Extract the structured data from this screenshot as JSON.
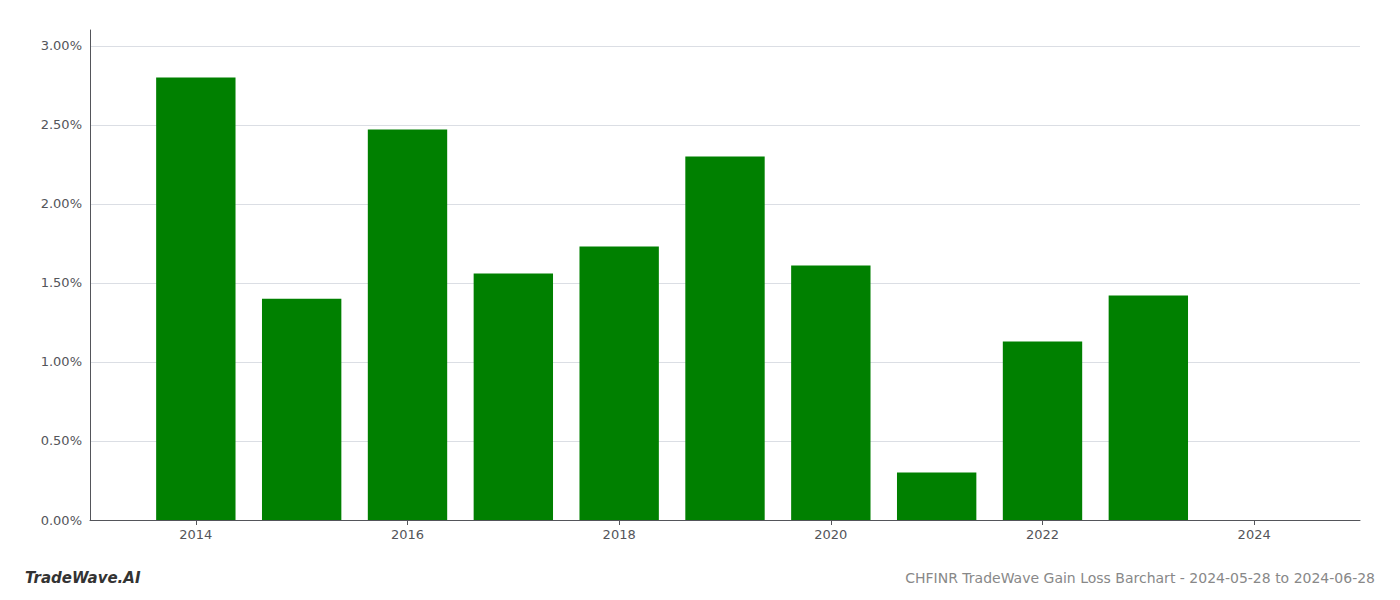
{
  "chart_data": {
    "type": "bar",
    "title": "CHFINR TradeWave Gain Loss Barchart - 2024-05-28 to 2024-06-28",
    "annotations": [
      "TradeWave.AI"
    ],
    "x": [
      2014,
      2015,
      2016,
      2017,
      2018,
      2019,
      2020,
      2021,
      2022,
      2023,
      2024
    ],
    "values": [
      0.028,
      0.014,
      0.0247,
      0.0156,
      0.0173,
      0.023,
      0.0161,
      0.003,
      0.0113,
      0.0142,
      null
    ],
    "color": "#008000",
    "xlim": [
      2013.0,
      2025.0
    ],
    "xticks": [
      2014,
      2016,
      2018,
      2020,
      2022,
      2024
    ],
    "ylim": [
      0,
      0.031
    ],
    "yticks": [
      {
        "value": 0.0,
        "label": "0.00%"
      },
      {
        "value": 0.005,
        "label": "0.50%"
      },
      {
        "value": 0.01,
        "label": "1.00%"
      },
      {
        "value": 0.015,
        "label": "1.50%"
      },
      {
        "value": 0.02,
        "label": "2.00%"
      },
      {
        "value": 0.025,
        "label": "2.50%"
      },
      {
        "value": 0.03,
        "label": "3.00%"
      }
    ],
    "grid": true
  }
}
